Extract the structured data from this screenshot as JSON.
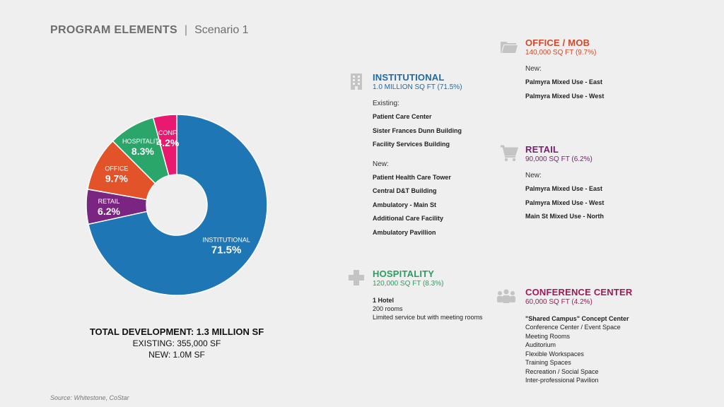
{
  "header": {
    "title": "PROGRAM ELEMENTS",
    "separator": "|",
    "subtitle": "Scenario 1"
  },
  "chart_data": {
    "type": "pie",
    "variant": "donut",
    "title": "Program Elements",
    "slices": [
      {
        "label": "INSTITUTIONAL",
        "value": 71.5,
        "display": "71.5%",
        "color": "#1f76b4"
      },
      {
        "label": "RETAIL",
        "value": 6.2,
        "display": "6.2%",
        "color": "#7a2581"
      },
      {
        "label": "OFFICE",
        "value": 9.7,
        "display": "9.7%",
        "color": "#e2532a"
      },
      {
        "label": "HOSPITALITY",
        "value": 8.3,
        "display": "8.3%",
        "color": "#2aa66a"
      },
      {
        "label": "CONF.",
        "value": 4.2,
        "display": "4.2%",
        "color": "#e8196f"
      }
    ]
  },
  "totals": {
    "line1": "TOTAL DEVELOPMENT: 1.3 MILLION SF",
    "line2": "EXISTING: 355,000 SF",
    "line3": "NEW: 1.0M SF"
  },
  "source": "Source: Whitestone, CoStar",
  "institutional": {
    "name": "INSTITUTIONAL",
    "sqft": "1.0 MILLION SQ FT (71.5%)",
    "color": "#1f6aa5",
    "existing_label": "Existing:",
    "existing": [
      "Patient Care Center",
      "Sister Frances Dunn Building",
      "Facility Services Building"
    ],
    "new_label": "New:",
    "new": [
      "Patient Health Care Tower",
      "Central D&T Building",
      "Ambulatory - Main St",
      "Additional Care Facility",
      "Ambulatory Pavillion"
    ]
  },
  "hospitality": {
    "name": "HOSPITALITY",
    "sqft": "120,000 SQ FT (8.3%)",
    "color": "#2a9d5f",
    "line1": "1 Hotel",
    "line2": "200 rooms",
    "line3": "Limited service but with meeting rooms"
  },
  "office": {
    "name": "OFFICE / MOB",
    "sqft": "140,000 SQ FT (9.7%)",
    "color": "#d1492a",
    "new_label": "New:",
    "new": [
      "Palmyra Mixed Use - East",
      "Palmyra Mixed Use - West"
    ]
  },
  "retail": {
    "name": "RETAIL",
    "sqft": "90,000 SQ FT (6.2%)",
    "color": "#7a2073",
    "new_label": "New:",
    "new": [
      "Palmyra Mixed Use - East",
      "Palmyra Mixed Use - West",
      "Main St Mixed Use - North"
    ]
  },
  "conference": {
    "name": "CONFERENCE CENTER",
    "sqft": "60,000 SQ FT (4.2%)",
    "color": "#a3175a",
    "heading": "\"Shared Campus\" Concept Center",
    "items": [
      "Conference Center / Event Space",
      "Meeting Rooms",
      "Auditorium",
      "Flexible Workspaces",
      "Training Spaces",
      "Recreation / Social Space",
      "Inter-professional Pavilion"
    ]
  }
}
